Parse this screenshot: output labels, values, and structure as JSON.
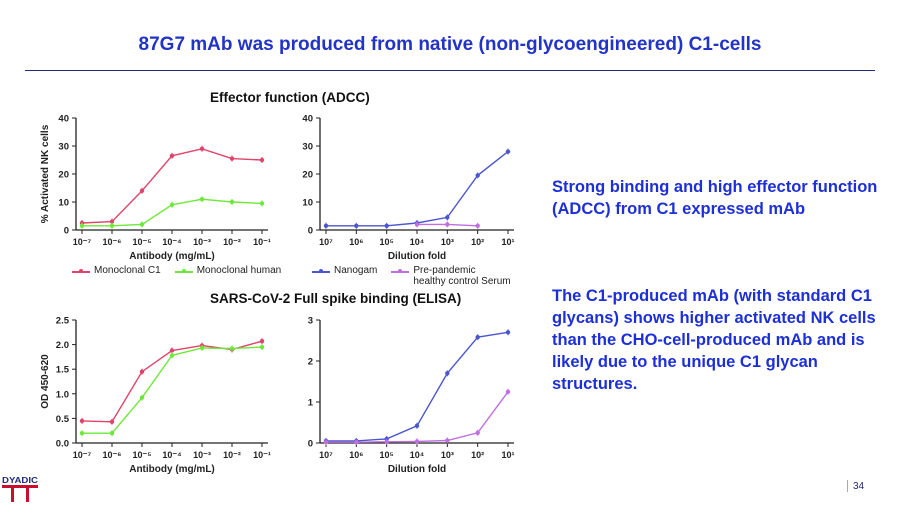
{
  "slide_title": "87G7 mAb was produced from native (non-glycoengineered) C1-cells",
  "section_adcc": "Effector function  (ADCC)",
  "section_elisa": "SARS-CoV-2 Full spike binding (ELISA)",
  "side_text_1": "Strong binding and high effector function (ADCC) from C1 expressed mAb",
  "side_text_2": "The C1-produced mAb (with standard C1 glycans) shows higher activated NK cells than the CHO-cell-produced mAb and is likely due to the unique C1 glycan structures.",
  "logo_text": "DYADIC",
  "page_number": "34",
  "colors": {
    "c1": "#e0446a",
    "human": "#6ee83a",
    "nanogam": "#4b56cf",
    "prepandemic": "#bf6fe0",
    "title": "#2233c8"
  },
  "legend_left": [
    {
      "label": "Monoclonal C1",
      "color": "#e0446a"
    },
    {
      "label": "Monoclonal human",
      "color": "#6ee83a"
    }
  ],
  "legend_right": [
    {
      "label": "Nanogam",
      "color": "#4b56cf"
    },
    {
      "label": "Pre-pandemic\nhealthy control Serum",
      "color": "#bf6fe0"
    }
  ],
  "chart_data": [
    {
      "id": "adcc-antibody",
      "type": "line",
      "ylabel": "% Activated NK cells",
      "xlabel": "Antibody (mg/mL)",
      "categories": [
        "10⁻⁷",
        "10⁻⁶",
        "10⁻⁵",
        "10⁻⁴",
        "10⁻³",
        "10⁻²",
        "10⁻¹"
      ],
      "ylim": [
        0,
        40
      ],
      "yticks": [
        "0",
        "10",
        "20",
        "30",
        "40"
      ],
      "series": [
        {
          "name": "Monoclonal C1",
          "color": "#e0446a",
          "values": [
            2.5,
            3,
            14,
            26.5,
            29,
            25.5,
            25
          ]
        },
        {
          "name": "Monoclonal human",
          "color": "#6ee83a",
          "values": [
            1.5,
            1.5,
            2,
            9,
            11,
            10,
            9.5
          ]
        }
      ]
    },
    {
      "id": "adcc-dilution",
      "type": "line",
      "ylabel": "",
      "xlabel": "Dilution fold",
      "categories": [
        "10⁷",
        "10⁶",
        "10⁵",
        "10⁴",
        "10³",
        "10²",
        "10¹"
      ],
      "ylim": [
        0,
        40
      ],
      "yticks": [
        "0",
        "10",
        "20",
        "30",
        "40"
      ],
      "series": [
        {
          "name": "Nanogam",
          "color": "#4b56cf",
          "values": [
            1.5,
            1.5,
            1.5,
            2.5,
            4.5,
            19.5,
            28
          ]
        },
        {
          "name": "Pre-pandemic healthy control Serum",
          "color": "#bf6fe0",
          "values": [
            null,
            null,
            null,
            2,
            2,
            1.5,
            null
          ]
        }
      ]
    },
    {
      "id": "elisa-antibody",
      "type": "line",
      "ylabel": "OD 450-620",
      "xlabel": "Antibody (mg/mL)",
      "categories": [
        "10⁻⁷",
        "10⁻⁶",
        "10⁻⁵",
        "10⁻⁴",
        "10⁻³",
        "10⁻²",
        "10⁻¹"
      ],
      "ylim": [
        0,
        2.5
      ],
      "yticks": [
        "0.0",
        "0.5",
        "1.0",
        "1.5",
        "2.0",
        "2.5"
      ],
      "series": [
        {
          "name": "Monoclonal C1",
          "color": "#e0446a",
          "values": [
            0.45,
            0.43,
            1.45,
            1.88,
            1.98,
            1.9,
            2.07
          ]
        },
        {
          "name": "Monoclonal human",
          "color": "#6ee83a",
          "values": [
            0.2,
            0.2,
            0.92,
            1.78,
            1.93,
            1.92,
            1.95
          ]
        }
      ]
    },
    {
      "id": "elisa-dilution",
      "type": "line",
      "ylabel": "",
      "xlabel": "Dilution fold",
      "categories": [
        "10⁷",
        "10⁶",
        "10⁵",
        "10⁴",
        "10³",
        "10²",
        "10¹"
      ],
      "ylim": [
        0,
        3
      ],
      "yticks": [
        "0",
        "1",
        "2",
        "3"
      ],
      "series": [
        {
          "name": "Nanogam",
          "color": "#4b56cf",
          "values": [
            0.05,
            0.05,
            0.1,
            0.42,
            1.7,
            2.58,
            2.7
          ]
        },
        {
          "name": "Pre-pandemic healthy control Serum",
          "color": "#bf6fe0",
          "values": [
            0.02,
            0.02,
            0.03,
            0.04,
            0.06,
            0.25,
            1.25
          ]
        }
      ]
    }
  ]
}
